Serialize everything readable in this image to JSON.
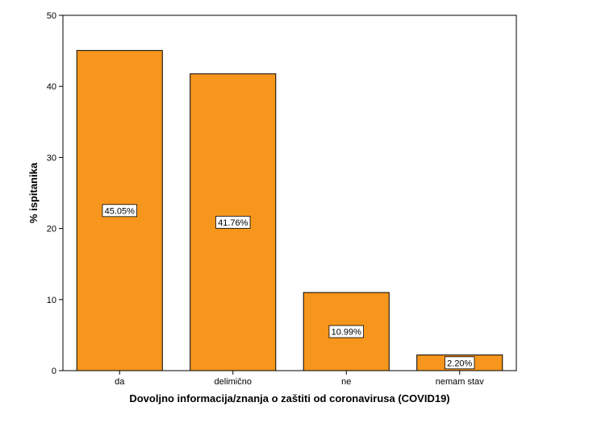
{
  "chart_data": {
    "type": "bar",
    "categories": [
      "da",
      "delimično",
      "ne",
      "nemam stav"
    ],
    "values": [
      45.05,
      41.76,
      10.99,
      2.2
    ],
    "data_labels": [
      "45.05%",
      "41.76%",
      "10.99%",
      "2.20%"
    ],
    "xlabel": "Dovoljno informacija/znanja o zaštiti od coronavirusa (COVID19)",
    "ylabel": "% ispitanika",
    "ylim": [
      0,
      50
    ],
    "yticks": [
      0,
      10,
      20,
      30,
      40,
      50
    ],
    "grid": false,
    "legend": "none",
    "bar_color": "#F7961C",
    "bar_edge_color": "#000000"
  }
}
